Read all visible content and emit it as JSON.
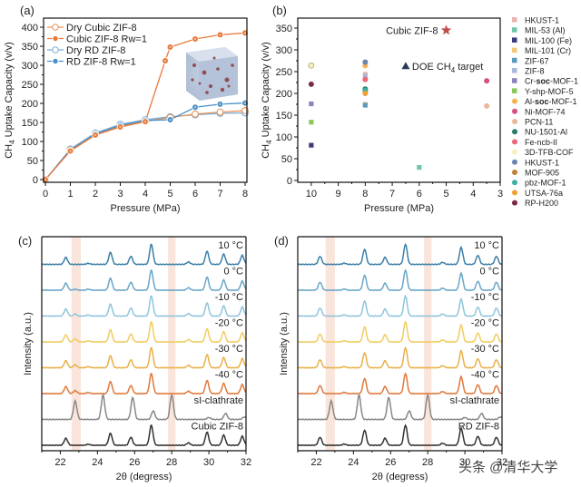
{
  "chart_data": [
    {
      "panel": "(a)",
      "type": "line",
      "xlabel": "Pressure (MPa)",
      "ylabel": "CH4 Uptake Capacity (v/v)",
      "xlim": [
        0,
        8
      ],
      "ylim": [
        0,
        400
      ],
      "xticks": [
        0,
        1,
        2,
        3,
        4,
        5,
        6,
        7,
        8
      ],
      "yticks": [
        0,
        50,
        100,
        150,
        200,
        250,
        300,
        350,
        400
      ],
      "legend_position": "top-left",
      "inset": "ZIF-8 cube illustration",
      "series": [
        {
          "name": "Dry Cubic ZIF-8",
          "color": "#e8955a",
          "marker": "open-circle",
          "x": [
            0,
            1,
            2,
            3,
            4,
            5,
            6,
            7,
            8
          ],
          "y": [
            0,
            78,
            118,
            140,
            153,
            163,
            172,
            177,
            181
          ]
        },
        {
          "name": "Cubic ZIF-8 Rw=1",
          "color": "#e8793a",
          "marker": "filled-circle",
          "x": [
            0,
            1,
            2,
            3,
            4,
            4.8,
            5,
            6,
            7,
            8
          ],
          "y": [
            0,
            75,
            117,
            138,
            152,
            312,
            348,
            369,
            380,
            385
          ]
        },
        {
          "name": "Dry RD ZIF-8",
          "color": "#7aaed6",
          "marker": "open-circle",
          "x": [
            0,
            1,
            2,
            3,
            4,
            5,
            6,
            7,
            8
          ],
          "y": [
            0,
            80,
            122,
            145,
            157,
            165,
            170,
            174,
            175
          ]
        },
        {
          "name": "RD ZIF-8 Rw=1",
          "color": "#4a8fc8",
          "marker": "filled-circle",
          "x": [
            0,
            1,
            2,
            3,
            4,
            5,
            6,
            7,
            8
          ],
          "y": [
            0,
            77,
            120,
            142,
            155,
            157,
            190,
            198,
            201
          ]
        }
      ]
    },
    {
      "panel": "(b)",
      "type": "scatter",
      "xlabel": "Pressure (MPa)",
      "ylabel": "CH4 Uptake Capacity (v/v)",
      "xlim": [
        10.5,
        3
      ],
      "ylim": [
        0,
        360
      ],
      "xticks": [
        10,
        9,
        8,
        7,
        6,
        5,
        4,
        3
      ],
      "yticks": [
        0,
        50,
        100,
        150,
        200,
        250,
        300,
        350
      ],
      "legend_position": "right-outside",
      "annotations": [
        {
          "text": "Cubic ZIF-8",
          "x": 5,
          "y": 345,
          "marker": "star",
          "color": "#c0504d"
        },
        {
          "text": "DOE CH4 target",
          "x": 6.5,
          "y": 263,
          "marker": "triangle",
          "color": "#2e3a5c"
        }
      ],
      "series": [
        {
          "name": "HKUST-1",
          "color": "#e8b4b0",
          "marker": "square",
          "x": [
            8
          ],
          "y": [
            244
          ]
        },
        {
          "name": "MIL-53 (Al)",
          "color": "#6fc7a8",
          "marker": "square",
          "x": [
            6
          ],
          "y": [
            30
          ]
        },
        {
          "name": "MIL-100 (Fe)",
          "color": "#3d3a7a",
          "marker": "square",
          "x": [
            10
          ],
          "y": [
            81
          ]
        },
        {
          "name": "MIL-101 (Cr)",
          "color": "#f0c878",
          "marker": "square",
          "x": [
            8
          ],
          "y": [
            175
          ]
        },
        {
          "name": "ZIF-67",
          "color": "#5a9ac0",
          "marker": "square",
          "x": [
            8
          ],
          "y": [
            173
          ]
        },
        {
          "name": "ZIF-8",
          "color": "#a8b8dc",
          "marker": "square",
          "x": [
            8
          ],
          "y": [
            240
          ]
        },
        {
          "name": "Cr-soc-MOF-1",
          "color": "#8c84b8",
          "marker": "square",
          "x": [
            10
          ],
          "y": [
            176
          ]
        },
        {
          "name": "Y-shp-MOF-5",
          "color": "#8cc65a",
          "marker": "square",
          "x": [
            10
          ],
          "y": [
            134
          ]
        },
        {
          "name": "Al-soc-MOF-1",
          "color": "#f5b050",
          "marker": "circle",
          "x": [
            8
          ],
          "y": [
            264
          ]
        },
        {
          "name": "Ni-MOF-74",
          "color": "#d85080",
          "marker": "circle",
          "x": [
            3.5
          ],
          "y": [
            229
          ]
        },
        {
          "name": "PCN-11",
          "color": "#e8b898",
          "marker": "circle",
          "x": [
            3.5
          ],
          "y": [
            171
          ]
        },
        {
          "name": "NU-1501-Al",
          "color": "#2a7a6a",
          "marker": "circle",
          "x": [
            8
          ],
          "y": [
            210
          ]
        },
        {
          "name": "Fe-ncb-II",
          "color": "#ec6878",
          "marker": "circle",
          "x": [
            8
          ],
          "y": [
            232
          ]
        },
        {
          "name": "3D-TFB-COF",
          "color": "#f5f0c0",
          "marker": "circle",
          "x": [
            10
          ],
          "y": [
            264
          ]
        },
        {
          "name": "HKUST-1",
          "color": "#6a84b0",
          "marker": "circle",
          "x": [
            8
          ],
          "y": [
            272
          ]
        },
        {
          "name": "MOF-905",
          "color": "#c0803a",
          "marker": "circle",
          "x": [
            8
          ],
          "y": [
            203
          ]
        },
        {
          "name": "pbz-MOF-1",
          "color": "#3ab0a0",
          "marker": "circle",
          "x": [
            8
          ],
          "y": [
            207
          ]
        },
        {
          "name": "UTSA-76a",
          "color": "#f0a030",
          "marker": "circle",
          "x": [
            8
          ],
          "y": [
            200
          ]
        },
        {
          "name": "RP-H200",
          "color": "#7a2a48",
          "marker": "circle",
          "x": [
            10
          ],
          "y": [
            221
          ]
        }
      ],
      "legend_labels": [
        {
          "pre": "HKUST-1",
          "bold": "",
          "post": ""
        },
        {
          "pre": "MIL-53 (Al)",
          "bold": "",
          "post": ""
        },
        {
          "pre": "MIL-100 (Fe)",
          "bold": "",
          "post": ""
        },
        {
          "pre": "MIL-101 (Cr)",
          "bold": "",
          "post": ""
        },
        {
          "pre": "ZIF-67",
          "bold": "",
          "post": ""
        },
        {
          "pre": "ZIF-8",
          "bold": "",
          "post": ""
        },
        {
          "pre": "Cr-",
          "bold": "soc",
          "post": "-MOF-1"
        },
        {
          "pre": "Y-shp-MOF-5",
          "bold": "",
          "post": ""
        },
        {
          "pre": "Al-",
          "bold": "soc",
          "post": "-MOF-1"
        },
        {
          "pre": "Ni-MOF-74",
          "bold": "",
          "post": ""
        },
        {
          "pre": "PCN-11",
          "bold": "",
          "post": ""
        },
        {
          "pre": "NU-1501-Al",
          "bold": "",
          "post": ""
        },
        {
          "pre": "Fe-ncb-II",
          "bold": "",
          "post": ""
        },
        {
          "pre": "3D-TFB-COF",
          "bold": "",
          "post": ""
        },
        {
          "pre": "HKUST-1",
          "bold": "",
          "post": ""
        },
        {
          "pre": "MOF-905",
          "bold": "",
          "post": ""
        },
        {
          "pre": "pbz-MOF-1",
          "bold": "",
          "post": ""
        },
        {
          "pre": "UTSA-76a",
          "bold": "",
          "post": ""
        },
        {
          "pre": "RP-H200",
          "bold": "",
          "post": ""
        }
      ]
    },
    {
      "panel": "(c)",
      "type": "line",
      "xlabel": "2θ (degress)",
      "ylabel": "Intensity (a.u.)",
      "xlim": [
        21,
        32
      ],
      "xticks": [
        22,
        24,
        26,
        28,
        30,
        32
      ],
      "highlight_bands": [
        [
          22.6,
          23.1
        ],
        [
          27.8,
          28.2
        ]
      ],
      "zif_peaks": [
        [
          22.3,
          0.35
        ],
        [
          23.5,
          0.05
        ],
        [
          24.7,
          0.6
        ],
        [
          25.8,
          0.4
        ],
        [
          26.9,
          1.0
        ],
        [
          28.9,
          0.12
        ],
        [
          29.9,
          0.65
        ],
        [
          30.8,
          0.5
        ],
        [
          31.8,
          0.45
        ]
      ],
      "clathrate_peaks": [
        [
          22.8,
          0.75
        ],
        [
          24.3,
          1.0
        ],
        [
          25.9,
          0.9
        ],
        [
          27.0,
          0.35
        ],
        [
          28.0,
          1.0
        ],
        [
          30.0,
          0.08
        ],
        [
          30.9,
          0.25
        ],
        [
          31.9,
          0.1
        ]
      ],
      "series": [
        {
          "name": "10 °C",
          "color": "#3a7fa8",
          "kind": "zif",
          "hydrate": 0.0
        },
        {
          "name": "0 °C",
          "color": "#6aa6c8",
          "kind": "zif",
          "hydrate": 0.05
        },
        {
          "name": "-10 °C",
          "color": "#90c4dc",
          "kind": "zif",
          "hydrate": 0.1
        },
        {
          "name": "-20 °C",
          "color": "#f0cc60",
          "kind": "zif",
          "hydrate": 0.15
        },
        {
          "name": "-30 °C",
          "color": "#eab048",
          "kind": "zif",
          "hydrate": 0.15
        },
        {
          "name": "-40 °C",
          "color": "#e0783a",
          "kind": "zif",
          "hydrate": 0.15
        },
        {
          "name": "sI-clathrate",
          "color": "#888888",
          "kind": "clathrate",
          "hydrate": 0
        },
        {
          "name": "Cubic ZIF-8",
          "color": "#333333",
          "kind": "zif",
          "hydrate": 0
        }
      ]
    },
    {
      "panel": "(d)",
      "type": "line",
      "xlabel": "2θ (degress)",
      "ylabel": "Intensity (a.u.)",
      "xlim": [
        21,
        32
      ],
      "xticks": [
        22,
        24,
        26,
        28,
        30,
        32
      ],
      "highlight_bands": [
        [
          22.5,
          23.0
        ],
        [
          27.8,
          28.2
        ]
      ],
      "zif_peaks": [
        [
          22.2,
          0.4
        ],
        [
          23.5,
          0.06
        ],
        [
          24.6,
          0.75
        ],
        [
          25.7,
          0.35
        ],
        [
          26.8,
          1.0
        ],
        [
          28.8,
          0.1
        ],
        [
          29.8,
          0.85
        ],
        [
          30.7,
          0.45
        ],
        [
          31.7,
          0.4
        ]
      ],
      "clathrate_peaks": [
        [
          22.8,
          0.75
        ],
        [
          24.3,
          1.0
        ],
        [
          25.9,
          0.9
        ],
        [
          27.0,
          0.35
        ],
        [
          28.0,
          1.0
        ],
        [
          30.0,
          0.08
        ],
        [
          30.9,
          0.25
        ],
        [
          31.9,
          0.1
        ]
      ],
      "series": [
        {
          "name": "10 °C",
          "color": "#3a7fa8",
          "kind": "zif",
          "hydrate": 0
        },
        {
          "name": "0 °C",
          "color": "#6aa6c8",
          "kind": "zif",
          "hydrate": 0
        },
        {
          "name": "-10 °C",
          "color": "#90c4dc",
          "kind": "zif",
          "hydrate": 0
        },
        {
          "name": "-20 °C",
          "color": "#f0cc60",
          "kind": "zif",
          "hydrate": 0
        },
        {
          "name": "-30 °C",
          "color": "#eab048",
          "kind": "zif",
          "hydrate": 0
        },
        {
          "name": "-40 °C",
          "color": "#e0783a",
          "kind": "zif",
          "hydrate": 0
        },
        {
          "name": "sI-clathrate",
          "color": "#888888",
          "kind": "clathrate",
          "hydrate": 0
        },
        {
          "name": "RD ZIF-8",
          "color": "#333333",
          "kind": "zif",
          "hydrate": 0
        }
      ]
    }
  ],
  "panel_labels": [
    "(a)",
    "(b)",
    "(c)",
    "(d)"
  ],
  "watermark": "头条 @清华大学"
}
